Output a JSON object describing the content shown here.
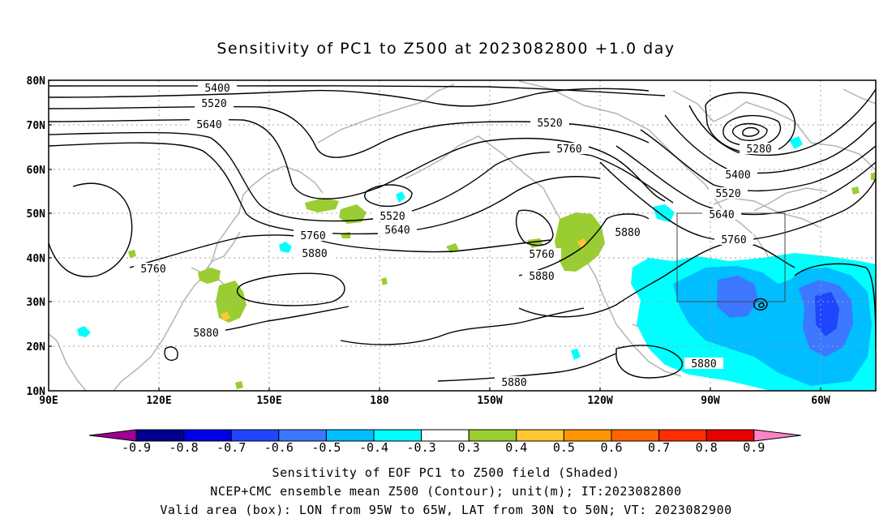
{
  "title": "Sensitivity of PC1 to Z500 at 2023082800 +1.0 day",
  "map": {
    "lat_labels": [
      "80N",
      "70N",
      "60N",
      "50N",
      "40N",
      "30N",
      "20N",
      "10N"
    ],
    "lon_labels": [
      "90E",
      "120E",
      "150E",
      "180",
      "150W",
      "120W",
      "90W",
      "60W"
    ],
    "contour_labels": [
      "5400",
      "5520",
      "5640",
      "5520",
      "5760",
      "5280",
      "5400",
      "5520",
      "5640",
      "5760",
      "5520",
      "5640",
      "5760",
      "5880",
      "5760",
      "5880",
      "5880",
      "5880",
      "5880",
      "5760"
    ],
    "box": {
      "lon_range": "95W to 65W",
      "lat_range": "30N to 50N"
    }
  },
  "colorbar": {
    "labels": [
      "-0.9",
      "-0.8",
      "-0.7",
      "-0.6",
      "-0.5",
      "-0.4",
      "-0.3",
      "0.3",
      "0.4",
      "0.5",
      "0.6",
      "0.7",
      "0.8",
      "0.9"
    ],
    "colors": [
      "#a00096",
      "#00008c",
      "#0000e6",
      "#1e46ff",
      "#3c78ff",
      "#00beff",
      "#00ffff",
      "#ffffff",
      "#9acd32",
      "#ffc832",
      "#ff9600",
      "#ff6400",
      "#ff2d00",
      "#e60000",
      "#ff82c8"
    ]
  },
  "captions": [
    "Sensitivity of EOF PC1 to Z500 field (Shaded)",
    "NCEP+CMC ensemble mean Z500 (Contour); unit(m); IT:2023082800",
    "Valid area (box): LON from 95W to 65W, LAT from 30N to 50N; VT: 2023082900"
  ]
}
